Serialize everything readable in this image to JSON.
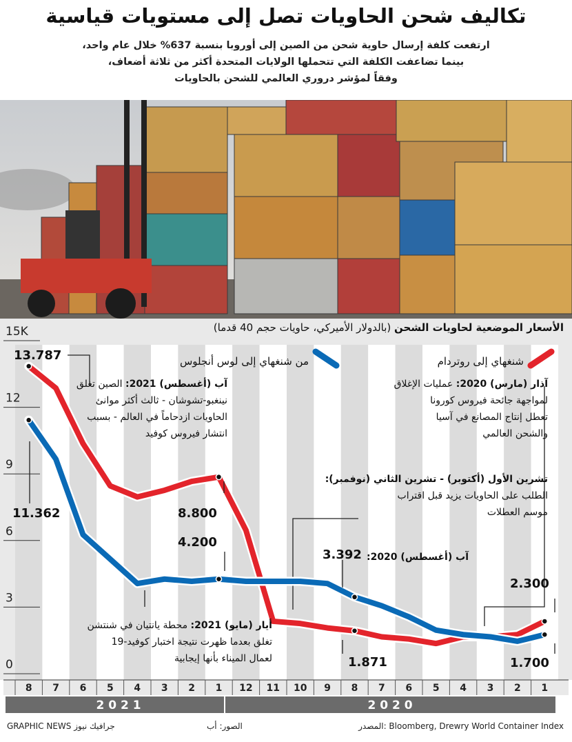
{
  "header": {
    "title": "تكاليف شحن الحاويات تصل إلى مستويات قياسية",
    "subtitle": [
      "ارتفعت كلفة إرسال حاوية شحن من الصين إلى أوروبا بنسبة 637% خلال عام واحد،",
      "بينما تضاعفت الكلفة التي تتحملها الولايات المتحدة أكثر من ثلاثة أضعاف،",
      "وفقاً لمؤشر دروري العالمي للشحن بالحاويات"
    ]
  },
  "chart_data": {
    "type": "line",
    "title": "الأسعار الموضعية لحاويات الشحن",
    "subtitle": "(بالدولار الأميركي، حاويات حجم 40 قدما)",
    "categories": [
      "8",
      "7",
      "6",
      "5",
      "4",
      "3",
      "2",
      "1",
      "12",
      "11",
      "10",
      "9",
      "8",
      "7",
      "6",
      "5",
      "4",
      "3",
      "2",
      "1"
    ],
    "years": [
      "2 0 2 1",
      "2 0 2 0"
    ],
    "series": [
      {
        "name": "شنغهاي إلى روتردام",
        "color": "#e3242b",
        "values": [
          13.787,
          12.8,
          10.3,
          8.4,
          7.9,
          8.2,
          8.6,
          8.8,
          6.4,
          2.3,
          2.2,
          2.0,
          1.871,
          1.6,
          1.5,
          1.3,
          1.6,
          1.6,
          1.7,
          2.3
        ],
        "value_labels": [
          "13.787",
          null,
          null,
          null,
          null,
          null,
          null,
          "8.800",
          null,
          null,
          null,
          null,
          "1.871",
          null,
          null,
          null,
          null,
          null,
          null,
          "2.300"
        ]
      },
      {
        "name": "من شنغهاي إلى لوس أنجلوس",
        "color": "#0a6ab6",
        "values": [
          11.362,
          9.6,
          6.2,
          5.1,
          4.0,
          4.2,
          4.1,
          4.2,
          4.1,
          4.1,
          4.1,
          4.0,
          3.392,
          3.0,
          2.5,
          1.9,
          1.7,
          1.6,
          1.4,
          1.7
        ],
        "value_labels": [
          "11.362",
          null,
          null,
          null,
          null,
          null,
          null,
          "4.200",
          null,
          null,
          null,
          null,
          "3.392",
          null,
          null,
          null,
          null,
          null,
          null,
          "1.700"
        ]
      }
    ],
    "ylim": [
      0,
      15
    ],
    "yticks": [
      0,
      3,
      6,
      9,
      12,
      {
        "value": 15,
        "label": "15K"
      }
    ],
    "annotations": [
      {
        "title": "آب (أغسطس) 2021:",
        "lines": [
          "الصين تغلق",
          "نينغبو-تشوشان - ثالث أكثر موانئ",
          "الحاويات ازدحاماً في العالم - بسبب",
          "انتشار فيروس كوفيد"
        ]
      },
      {
        "title": "آذار (مارس) 2020:",
        "lines": [
          "عمليات الإغلاق",
          "لمواجهة جائحة فيروس كورونا",
          "تعطل إنتاج المصانع في آسيا",
          "والشحن العالمي"
        ]
      },
      {
        "title": "تشرين الأول (أكتوبر) - تشرين الثاني (نوفمبر):",
        "lines": [
          "الطلب على الحاويات يزيد قبل اقتراب",
          "موسم العطلات"
        ]
      },
      {
        "title": "آب (أغسطس) 2020:",
        "lines": []
      },
      {
        "title": "أيار (مايو) 2021:",
        "lines": [
          "محطة يانتيان في شنتشن",
          "تغلق بعدما ظهرت نتيجة اختبار كوفيد-19",
          "لعمال الميناء بأنها إيجابية"
        ]
      }
    ]
  },
  "footer": {
    "source": "المصدر: Bloomberg, Drewry World Container Index",
    "photos": "الصور: أب",
    "credit": "GRAPHIC NEWS جرافيك نيوز"
  }
}
